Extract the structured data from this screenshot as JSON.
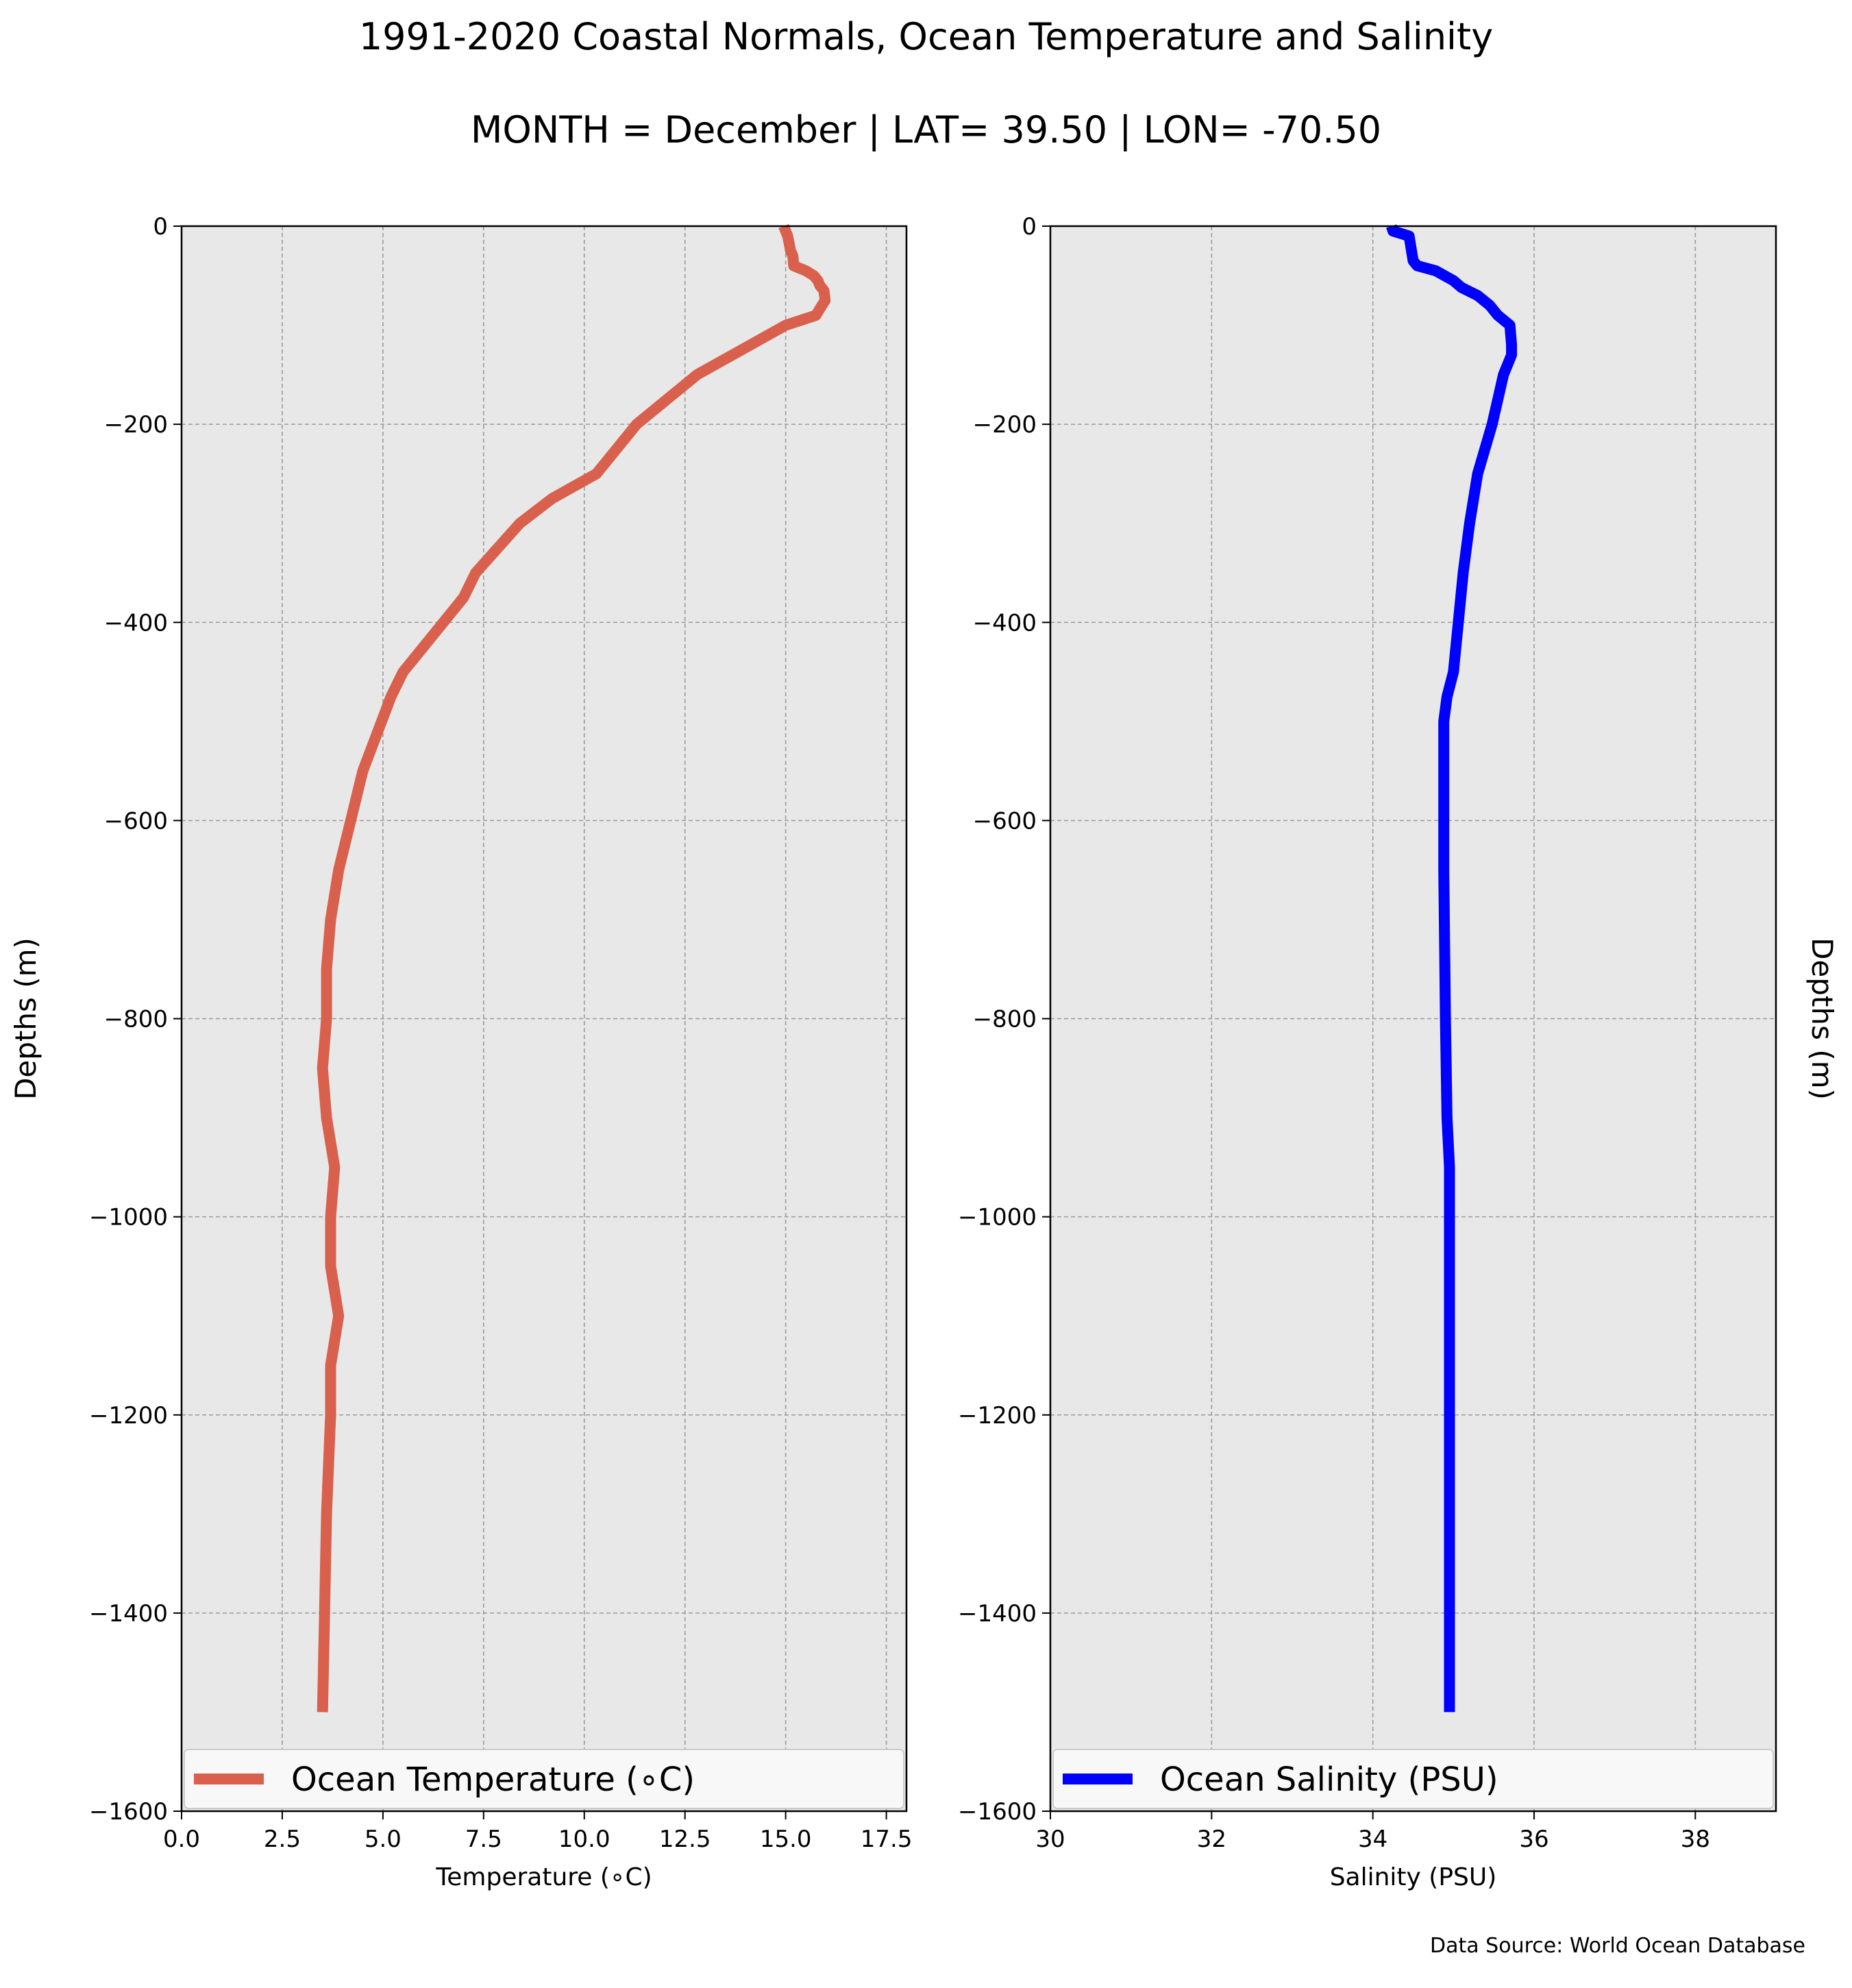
{
  "title": "1991-2020 Coastal Normals, Ocean Temperature and Salinity",
  "subtitle": "MONTH = December | LAT= 39.50 | LON= -70.50",
  "source": "Data Source: World Ocean Database",
  "chart_data": [
    {
      "type": "line",
      "xlabel": "Temperature (∘C)",
      "ylabel": "Depths (m)",
      "xlim": [
        0,
        18
      ],
      "ylim": [
        -1600,
        0
      ],
      "xticks": [
        "0.0",
        "2.5",
        "5.0",
        "7.5",
        "10.0",
        "12.5",
        "15.0",
        "17.5"
      ],
      "yticks": [
        "0",
        "−200",
        "−400",
        "−600",
        "−800",
        "−1000",
        "−1200",
        "−1400",
        "−1600"
      ],
      "grid": true,
      "legend_position": "bottom",
      "series": [
        {
          "name": "Ocean Temperature (∘C)",
          "color": "#d9604c",
          "x": [
            14.95,
            15.05,
            15.1,
            15.12,
            15.18,
            15.2,
            15.5,
            15.7,
            15.8,
            15.85,
            15.95,
            15.98,
            15.9,
            15.75,
            15.0,
            12.8,
            11.3,
            10.3,
            9.2,
            8.4,
            7.3,
            7.0,
            6.0,
            5.5,
            5.2,
            4.5,
            3.9,
            3.7,
            3.6,
            3.6,
            3.5,
            3.6,
            3.8,
            3.7,
            3.7,
            3.9,
            3.7,
            3.7,
            3.65,
            3.6,
            3.55,
            3.5
          ],
          "y": [
            0,
            -10,
            -20,
            -25,
            -30,
            -40,
            -45,
            -50,
            -55,
            -60,
            -65,
            -75,
            -80,
            -90,
            -100,
            -150,
            -200,
            -250,
            -275,
            -300,
            -350,
            -375,
            -425,
            -450,
            -475,
            -550,
            -650,
            -700,
            -750,
            -800,
            -850,
            -900,
            -950,
            -1000,
            -1050,
            -1100,
            -1150,
            -1200,
            -1250,
            -1300,
            -1400,
            -1500
          ]
        }
      ]
    },
    {
      "type": "line",
      "xlabel": "Salinity (PSU)",
      "ylabel": "Depths (m)",
      "xlim": [
        30,
        39
      ],
      "ylim": [
        -1600,
        0
      ],
      "xticks": [
        "30",
        "32",
        "34",
        "36",
        "38"
      ],
      "yticks": [
        "0",
        "−200",
        "−400",
        "−600",
        "−800",
        "−1000",
        "−1200",
        "−1400",
        "−1600"
      ],
      "grid": true,
      "legend_position": "bottom",
      "series": [
        {
          "name": "Ocean Salinity (PSU)",
          "color": "#0000ff",
          "x": [
            34.23,
            34.25,
            34.45,
            34.48,
            34.5,
            34.55,
            34.78,
            35.0,
            35.1,
            35.3,
            35.45,
            35.55,
            35.7,
            35.72,
            35.72,
            35.62,
            35.48,
            35.3,
            35.2,
            35.12,
            35.0,
            34.92,
            34.88,
            34.88,
            34.9,
            34.92,
            34.95,
            34.95,
            34.95,
            34.95
          ],
          "y": [
            0,
            -5,
            -10,
            -25,
            -35,
            -40,
            -45,
            -55,
            -62,
            -70,
            -80,
            -90,
            -100,
            -120,
            -130,
            -150,
            -200,
            -250,
            -300,
            -350,
            -450,
            -475,
            -500,
            -650,
            -800,
            -900,
            -950,
            -1000,
            -1200,
            -1500
          ]
        }
      ]
    }
  ]
}
